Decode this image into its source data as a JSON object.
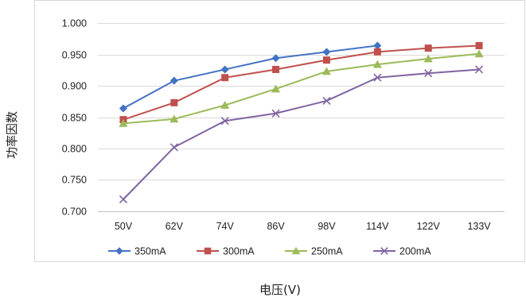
{
  "chart_data": {
    "type": "line",
    "title": "",
    "xlabel": "电压(V)",
    "ylabel": "功率因数",
    "categories": [
      "50V",
      "62V",
      "74V",
      "86V",
      "98V",
      "114V",
      "122V",
      "133V"
    ],
    "ylim": [
      0.7,
      1.0
    ],
    "yticks": [
      "1.000",
      "0.950",
      "0.900",
      "0.850",
      "0.800",
      "0.750",
      "0.700"
    ],
    "grid": true,
    "legend_position": "bottom",
    "series": [
      {
        "name": "350mA",
        "color": "#4472C4",
        "marker": "diamond",
        "values": [
          0.864,
          0.908,
          0.926,
          0.944,
          0.954,
          0.964,
          null,
          null
        ]
      },
      {
        "name": "300mA",
        "color": "#C0504D",
        "marker": "square",
        "values": [
          0.846,
          0.873,
          0.913,
          0.926,
          0.941,
          0.954,
          0.96,
          0.964
        ]
      },
      {
        "name": "250mA",
        "color": "#9BBB59",
        "marker": "triangle",
        "values": [
          0.84,
          0.847,
          0.869,
          0.895,
          0.923,
          0.934,
          0.943,
          0.951
        ]
      },
      {
        "name": "200mA",
        "color": "#8064A2",
        "marker": "x",
        "values": [
          0.719,
          0.802,
          0.844,
          0.856,
          0.876,
          0.913,
          0.92,
          0.926
        ]
      }
    ]
  }
}
